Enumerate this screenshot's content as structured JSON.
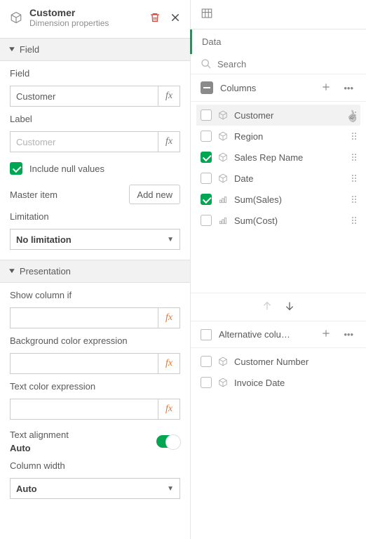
{
  "header": {
    "title": "Customer",
    "subtitle": "Dimension properties"
  },
  "sections": {
    "field": "Field",
    "presentation": "Presentation"
  },
  "field_panel": {
    "field_label": "Field",
    "field_value": "Customer",
    "label_label": "Label",
    "label_placeholder": "Customer",
    "include_null_label": "Include null values",
    "include_null_checked": true,
    "master_item_label": "Master item",
    "add_new_label": "Add new",
    "limitation_label": "Limitation",
    "limitation_value": "No limitation"
  },
  "presentation_panel": {
    "show_column_if_label": "Show column if",
    "bg_expr_label": "Background color expression",
    "text_expr_label": "Text color expression",
    "text_align_label": "Text alignment",
    "text_align_value": "Auto",
    "col_width_label": "Column width",
    "col_width_value": "Auto"
  },
  "right": {
    "data_label": "Data",
    "search_placeholder": "Search",
    "columns_label": "Columns",
    "columns": [
      {
        "name": "Customer",
        "checked": false,
        "type": "dim",
        "hover": true
      },
      {
        "name": "Region",
        "checked": false,
        "type": "dim",
        "hover": false
      },
      {
        "name": "Sales Rep Name",
        "checked": true,
        "type": "dim",
        "hover": false
      },
      {
        "name": "Date",
        "checked": false,
        "type": "dim",
        "hover": false
      },
      {
        "name": "Sum(Sales)",
        "checked": true,
        "type": "measure",
        "hover": false
      },
      {
        "name": "Sum(Cost)",
        "checked": false,
        "type": "measure",
        "hover": false
      }
    ],
    "alt_columns_label": "Alternative colu…",
    "alt_columns": [
      {
        "name": "Customer Number",
        "type": "dim"
      },
      {
        "name": "Invoice Date",
        "type": "dim"
      }
    ]
  },
  "colors": {
    "accent_green": "#00a651",
    "accent_orange": "#e8762d",
    "delete_red": "#d64b3f"
  }
}
